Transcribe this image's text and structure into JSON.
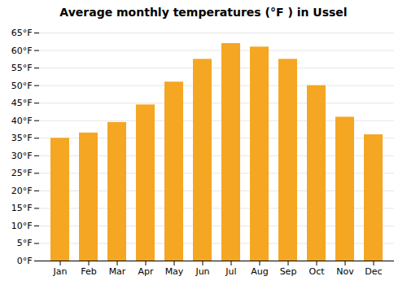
{
  "chart_data": {
    "type": "bar",
    "title": "Average monthly temperatures (°F ) in Ussel",
    "categories": [
      "Jan",
      "Feb",
      "Mar",
      "Apr",
      "May",
      "Jun",
      "Jul",
      "Aug",
      "Sep",
      "Oct",
      "Nov",
      "Dec"
    ],
    "values": [
      35,
      36.5,
      39.5,
      44.5,
      51,
      57.5,
      62,
      61,
      57.5,
      50,
      41,
      36
    ],
    "color": "#F5A623",
    "ylim": [
      0,
      65
    ],
    "yticks": [
      {
        "value": 0,
        "label": "0°F"
      },
      {
        "value": 5,
        "label": "5°F"
      },
      {
        "value": 10,
        "label": "10°F"
      },
      {
        "value": 15,
        "label": "15°F"
      },
      {
        "value": 20,
        "label": "20°F"
      },
      {
        "value": 25,
        "label": "25°F"
      },
      {
        "value": 30,
        "label": "30°F"
      },
      {
        "value": 35,
        "label": "35°F"
      },
      {
        "value": 40,
        "label": "40°F"
      },
      {
        "value": 45,
        "label": "45°F"
      },
      {
        "value": 50,
        "label": "50°F"
      },
      {
        "value": 55,
        "label": "55°F"
      },
      {
        "value": 60,
        "label": "60°F"
      },
      {
        "value": 65,
        "label": "65°F"
      }
    ],
    "grid": true
  }
}
